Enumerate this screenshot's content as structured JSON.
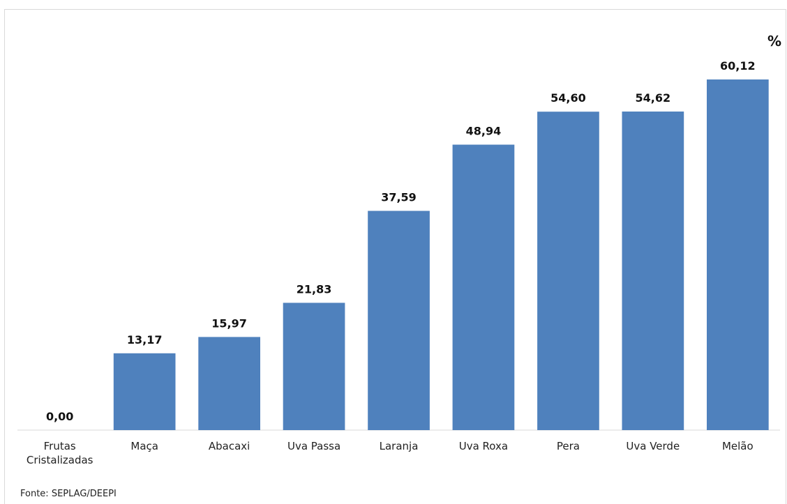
{
  "chart_data": {
    "type": "bar",
    "categories": [
      "Frutas Cristalizadas",
      "Maça",
      "Abacaxi",
      "Uva Passa",
      "Laranja",
      "Uva Roxa",
      "Pera",
      "Uva Verde",
      "Melão"
    ],
    "values": [
      0.0,
      13.17,
      15.97,
      21.83,
      37.59,
      48.94,
      54.6,
      54.62,
      60.12
    ],
    "value_labels": [
      "0,00",
      "13,17",
      "15,97",
      "21,83",
      "37,59",
      "48,94",
      "54,60",
      "54,62",
      "60,12"
    ],
    "unit": "%",
    "ylim": [
      0,
      65
    ],
    "grid": false,
    "legend": "none",
    "bar_color": "#4f81bd",
    "source": "Fonte: SEPLAG/DEEPI"
  }
}
